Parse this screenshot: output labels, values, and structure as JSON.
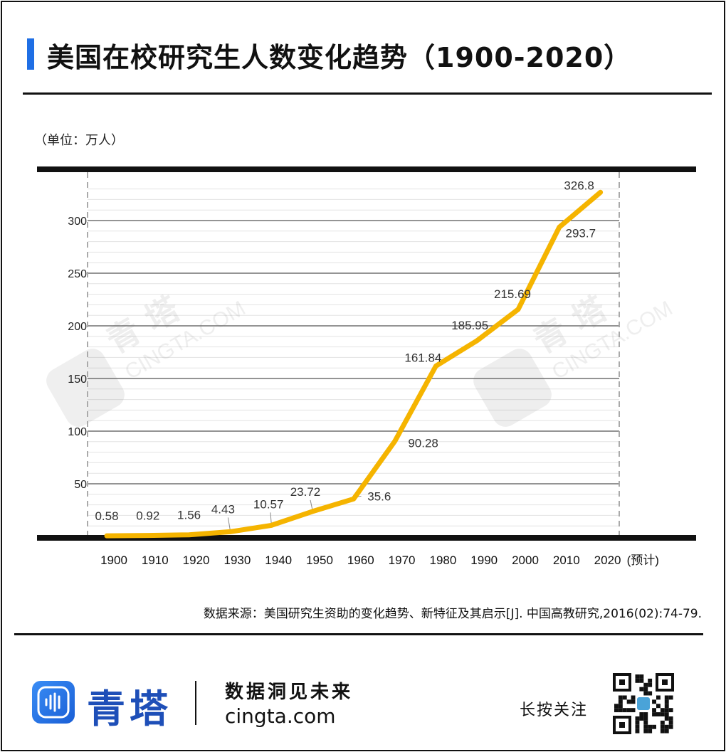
{
  "header": {
    "title": "美国在校研究生人数变化趋势（1900-2020）",
    "unit": "（单位：万人）"
  },
  "colors": {
    "line": "#f5b400",
    "accent": "#1f6fe5",
    "brand": "#1e4fb8"
  },
  "chart_data": {
    "type": "line",
    "title": "美国在校研究生人数变化趋势（1900-2020）",
    "ylabel": "（单位：万人）",
    "xlabel": "",
    "x": [
      "1900",
      "1910",
      "1920",
      "1930",
      "1940",
      "1950",
      "1960",
      "1970",
      "1980",
      "1990",
      "2000",
      "2010",
      "2020"
    ],
    "x_tick_labels": [
      "1900",
      "1910",
      "1920",
      "1930",
      "1940",
      "1950",
      "1960",
      "1970",
      "1980",
      "1990",
      "2000",
      "2010",
      "2020"
    ],
    "x_last_note": "(预计)",
    "series": [
      {
        "values": [
          0.58,
          0.92,
          1.56,
          4.43,
          10.57,
          23.72,
          35.6,
          90.28,
          161.84,
          185.95,
          215.69,
          293.7,
          326.8
        ],
        "labels": [
          "0.58",
          "0.92",
          "1.56",
          "4.43",
          "10.57",
          "23.72",
          "35.6",
          "90.28",
          "161.84",
          "185.95",
          "215.69",
          "293.7",
          "326.8"
        ]
      }
    ],
    "y_ticks": [
      50,
      100,
      150,
      200,
      250,
      300
    ],
    "ylim": [
      0,
      340
    ],
    "grid": true
  },
  "watermark": {
    "text": "CINGTA.COM",
    "brand": "青 塔"
  },
  "footer": {
    "source": "数据来源：美国研究生资助的变化趋势、新特征及其启示[J]. 中国高教研究,2016(02):74-79.",
    "brand": "青塔",
    "slogan": "数据洞见未来",
    "site": "cingta.com",
    "follow": "长按关注",
    "logo_icon": "waveform-icon",
    "qr_icon": "qr-code-icon"
  }
}
